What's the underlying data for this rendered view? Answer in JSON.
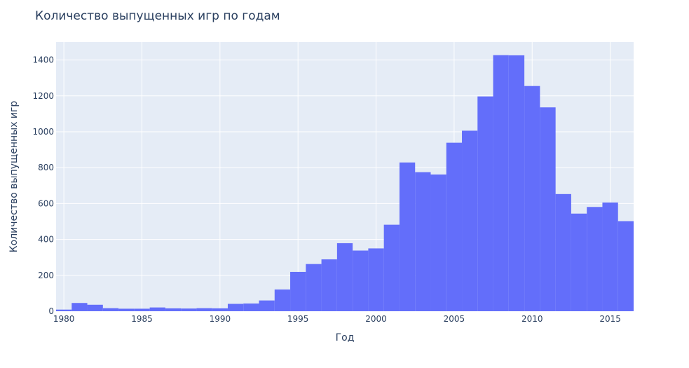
{
  "chart_data": {
    "type": "bar",
    "title": "Количество выпущенных игр по годам",
    "xlabel": "Год",
    "ylabel": "Количество выпущенных игр",
    "xlim": [
      1979.5,
      2016.5
    ],
    "ylim": [
      0,
      1500
    ],
    "bin_width": 1,
    "x_ticks": [
      1980,
      1985,
      1990,
      1995,
      2000,
      2005,
      2010,
      2015
    ],
    "y_ticks": [
      0,
      200,
      400,
      600,
      800,
      1000,
      1200,
      1400
    ],
    "x": [
      1980,
      1981,
      1982,
      1983,
      1984,
      1985,
      1986,
      1987,
      1988,
      1989,
      1990,
      1991,
      1992,
      1993,
      1994,
      1995,
      1996,
      1997,
      1998,
      1999,
      2000,
      2001,
      2002,
      2003,
      2004,
      2005,
      2006,
      2007,
      2008,
      2009,
      2010,
      2011,
      2012,
      2013,
      2014,
      2015,
      2016
    ],
    "values": [
      9,
      46,
      36,
      17,
      14,
      14,
      21,
      16,
      15,
      17,
      16,
      41,
      43,
      60,
      121,
      219,
      263,
      289,
      379,
      338,
      350,
      482,
      829,
      775,
      762,
      939,
      1006,
      1197,
      1427,
      1426,
      1255,
      1136,
      653,
      544,
      581,
      606,
      502
    ],
    "colors": {
      "bar": "#636efa",
      "plot_bg": "#e5ecf6",
      "grid": "#ffffff",
      "text": "#2a3f5f"
    },
    "grid": true,
    "legend": false
  }
}
